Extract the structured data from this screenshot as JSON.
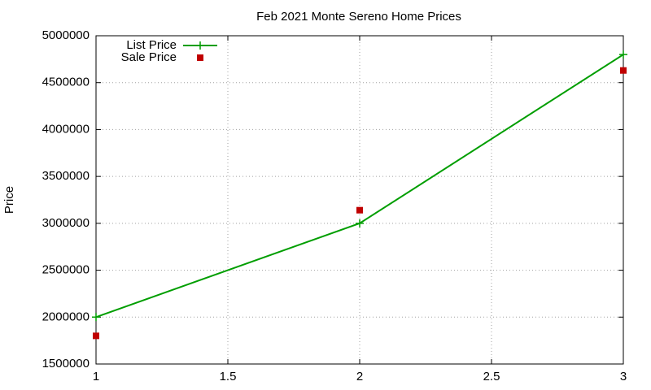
{
  "chart_data": {
    "type": "line",
    "title": "Feb 2021 Monte Sereno Home Prices",
    "y_label": "Price",
    "x": [
      1,
      2,
      3
    ],
    "series": [
      {
        "name": "List Price",
        "color": "#009e00",
        "style": "linespoints",
        "values": [
          2000000,
          3000000,
          4800000
        ]
      },
      {
        "name": "Sale Price",
        "color": "#c00000",
        "style": "points",
        "values": [
          1800000,
          3140000,
          4630000
        ]
      }
    ],
    "xlim": [
      1,
      3
    ],
    "xticks": [
      1,
      1.5,
      2,
      2.5,
      3
    ],
    "ylim": [
      1500000,
      5000000
    ],
    "yticks": [
      1500000,
      2000000,
      2500000,
      3000000,
      3500000,
      4000000,
      4500000,
      5000000
    ],
    "grid": true,
    "legend": "top-left"
  }
}
